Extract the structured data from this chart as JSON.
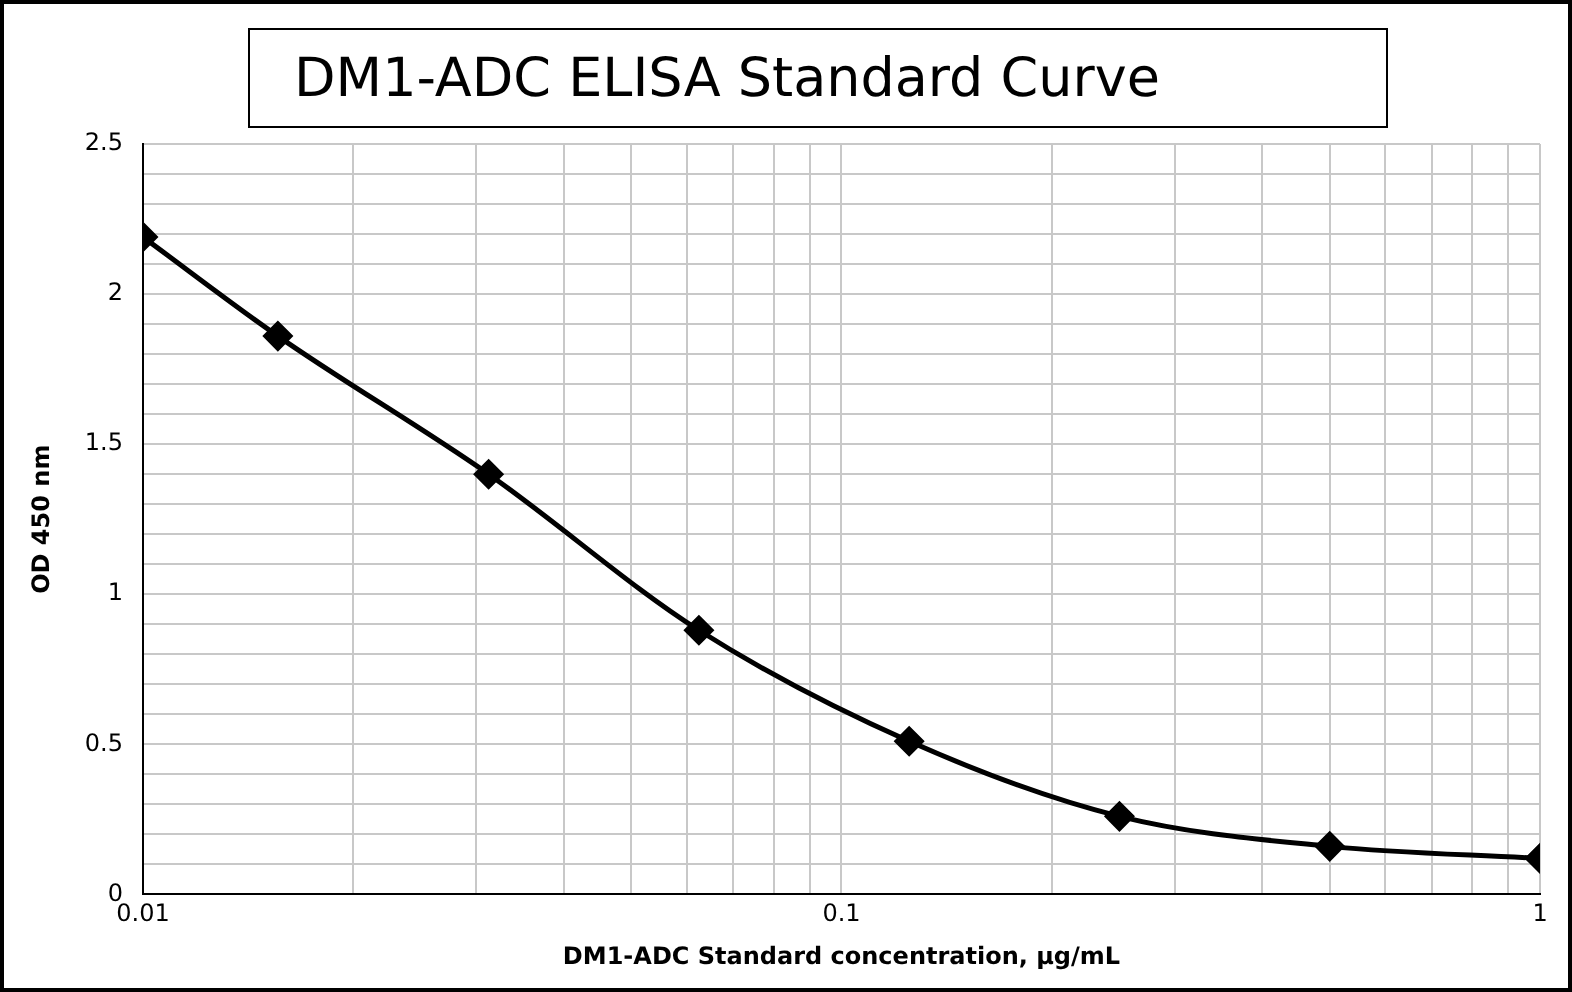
{
  "chart_data": {
    "type": "line",
    "title": "DM1-ADC ELISA Standard Curve",
    "xlabel": "DM1-ADC Standard concentration, µg/mL",
    "ylabel": "OD 450 nm",
    "x": [
      0.01,
      0.0156,
      0.03125,
      0.0625,
      0.125,
      0.25,
      0.5,
      1
    ],
    "series": [
      {
        "color": "#000000",
        "values": [
          2.19,
          1.86,
          1.4,
          0.88,
          0.51,
          0.26,
          0.16,
          0.12
        ]
      }
    ],
    "log": "x",
    "xlim": [
      0.01,
      1
    ],
    "xticks": [
      0.01,
      {
        "value": 0.02,
        "label": null
      },
      {
        "value": 0.03,
        "label": null
      },
      {
        "value": 0.04,
        "label": null
      },
      {
        "value": 0.05,
        "label": null
      },
      {
        "value": 0.06,
        "label": null
      },
      {
        "value": 0.07,
        "label": null
      },
      {
        "value": 0.08,
        "label": null
      },
      {
        "value": 0.09,
        "label": null
      },
      0.1,
      {
        "value": 0.2,
        "label": null
      },
      {
        "value": 0.3,
        "label": null
      },
      {
        "value": 0.4,
        "label": null
      },
      {
        "value": 0.5,
        "label": null
      },
      {
        "value": 0.6,
        "label": null
      },
      {
        "value": 0.7,
        "label": null
      },
      {
        "value": 0.8,
        "label": null
      },
      {
        "value": 0.9,
        "label": null
      },
      1
    ],
    "ylim": [
      0,
      2.5
    ],
    "yticks": [
      0,
      {
        "value": 0.1,
        "label": null
      },
      {
        "value": 0.2,
        "label": null
      },
      {
        "value": 0.3,
        "label": null
      },
      {
        "value": 0.4,
        "label": null
      },
      0.5,
      {
        "value": 0.6,
        "label": null
      },
      {
        "value": 0.7,
        "label": null
      },
      {
        "value": 0.8,
        "label": null
      },
      {
        "value": 0.9,
        "label": null
      },
      1,
      {
        "value": 1.1,
        "label": null
      },
      {
        "value": 1.2,
        "label": null
      },
      {
        "value": 1.3,
        "label": null
      },
      {
        "value": 1.4,
        "label": null
      },
      1.5,
      {
        "value": 1.6,
        "label": null
      },
      {
        "value": 1.7,
        "label": null
      },
      {
        "value": 1.8,
        "label": null
      },
      {
        "value": 1.9,
        "label": null
      },
      2,
      {
        "value": 2.1,
        "label": null
      },
      {
        "value": 2.2,
        "label": null
      },
      {
        "value": 2.3,
        "label": null
      },
      {
        "value": 2.4,
        "label": null
      },
      2.5
    ],
    "grid": true,
    "marker": "diamond",
    "line_style": "solid",
    "legend": false
  }
}
